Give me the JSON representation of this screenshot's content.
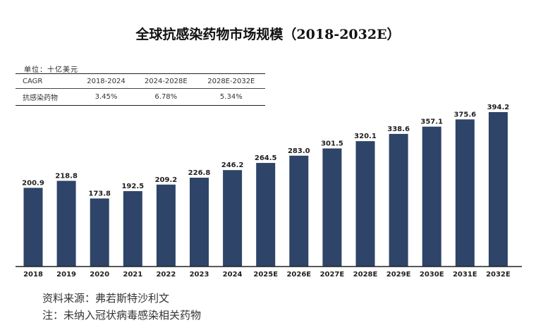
{
  "title": "全球抗感染药物市场规模（2018-2032E）",
  "unit_label": "单位：十亿美元",
  "cagr_table": {
    "header": [
      "CAGR",
      "2018-2024",
      "2024-2028E",
      "2028E-2032E"
    ],
    "rows": [
      [
        "抗感染药物",
        "3.45%",
        "6.78%",
        "5.34%"
      ]
    ]
  },
  "chart_data": {
    "type": "bar",
    "title": "全球抗感染药物市场规模（2018-2032E）",
    "xlabel": "",
    "ylabel": "",
    "categories": [
      "2018",
      "2019",
      "2020",
      "2021",
      "2022",
      "2023",
      "2024",
      "2025E",
      "2026E",
      "2027E",
      "2028E",
      "2029E",
      "2030E",
      "2031E",
      "2032E"
    ],
    "values": [
      200.9,
      218.8,
      173.8,
      192.5,
      209.2,
      226.8,
      246.2,
      264.5,
      283.0,
      301.5,
      320.1,
      338.6,
      357.1,
      375.6,
      394.2
    ],
    "value_labels": [
      "200.9",
      "218.8",
      "173.8",
      "192.5",
      "209.2",
      "226.8",
      "246.2",
      "264.5",
      "283.0",
      "301.5",
      "320.1",
      "338.6",
      "357.1",
      "375.6",
      "394.2"
    ],
    "ylim": [
      0,
      394.2
    ],
    "bar_color": "#2e4468",
    "grid": false,
    "legend": "none"
  },
  "footnotes": {
    "source": "资料来源：弗若斯特沙利文",
    "note": "注：未纳入冠状病毒感染相关药物"
  }
}
